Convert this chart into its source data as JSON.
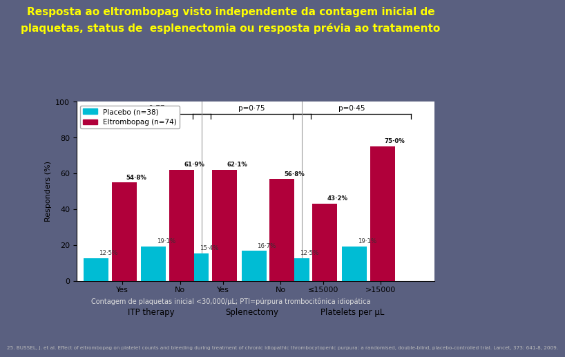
{
  "title_line1": "Resposta ao eltrombopag visto independente da contagem inicial de",
  "title_line2": "plaquetas, status de  esplenectomia ou resposta prévia ao tratamento",
  "title_color": "#FFFF00",
  "background_color": "#5a6080",
  "chart_bg": "#ffffff",
  "placebo_color": "#00bcd4",
  "eltrom_color": "#b0003a",
  "groups": [
    {
      "label": "Yes",
      "group_label": "ITP therapy",
      "placebo": 12.5,
      "eltrom": 54.8
    },
    {
      "label": "No",
      "group_label": "ITP therapy",
      "placebo": 19.1,
      "eltrom": 61.9
    },
    {
      "label": "Yes",
      "group_label": "Splenectomy",
      "placebo": 15.4,
      "eltrom": 62.1
    },
    {
      "label": "No",
      "group_label": "Splenectomy",
      "placebo": 16.7,
      "eltrom": 56.8
    },
    {
      "label": "≤15000",
      "group_label": "Platelets per μL",
      "placebo": 12.5,
      "eltrom": 43.2
    },
    {
      "label": ">15000",
      "group_label": "Platelets per μL",
      "placebo": 19.1,
      "eltrom": 75.0
    }
  ],
  "p_values": [
    {
      "text": "p=0·77",
      "group": [
        0,
        1
      ]
    },
    {
      "text": "p=0·75",
      "group": [
        2,
        3
      ]
    },
    {
      "text": "p=0·45",
      "group": [
        4,
        5
      ]
    }
  ],
  "group_label_info": [
    {
      "text": "ITP therapy",
      "pair": 0
    },
    {
      "text": "Splenectomy",
      "pair": 1
    },
    {
      "text": "Platelets per μL",
      "pair": 2
    }
  ],
  "label_fmt": {
    "12.5": "12·5%",
    "19.1": "19·1%",
    "54.8": "54·8%",
    "61.9": "61·9%",
    "15.4": "15·4%",
    "16.7": "16·7%",
    "62.1": "62·1%",
    "56.8": "56·8%",
    "43.2": "43·2%",
    "75.0": "75·0%"
  },
  "ylabel": "Responders (%)",
  "ylim": [
    0,
    100
  ],
  "yticks": [
    0,
    20,
    40,
    60,
    80,
    100
  ],
  "legend_placebo": "Placebo (n=38)",
  "legend_eltrom": "Eltrombopag (n=74)",
  "footnote": "Contagem de plaquetas inicial <30,000/μL; PTI=púrpura trombocitônica idiopática",
  "reference": "25. BUSSEL, J. et al. Effect of eltrombopag on platelet counts and bleeding during treatment of chronic idiopathic thrombocytopenic purpura: a randomised, double-blind, placebo-controlled trial. Lancet, 373: 641-8, 2009."
}
